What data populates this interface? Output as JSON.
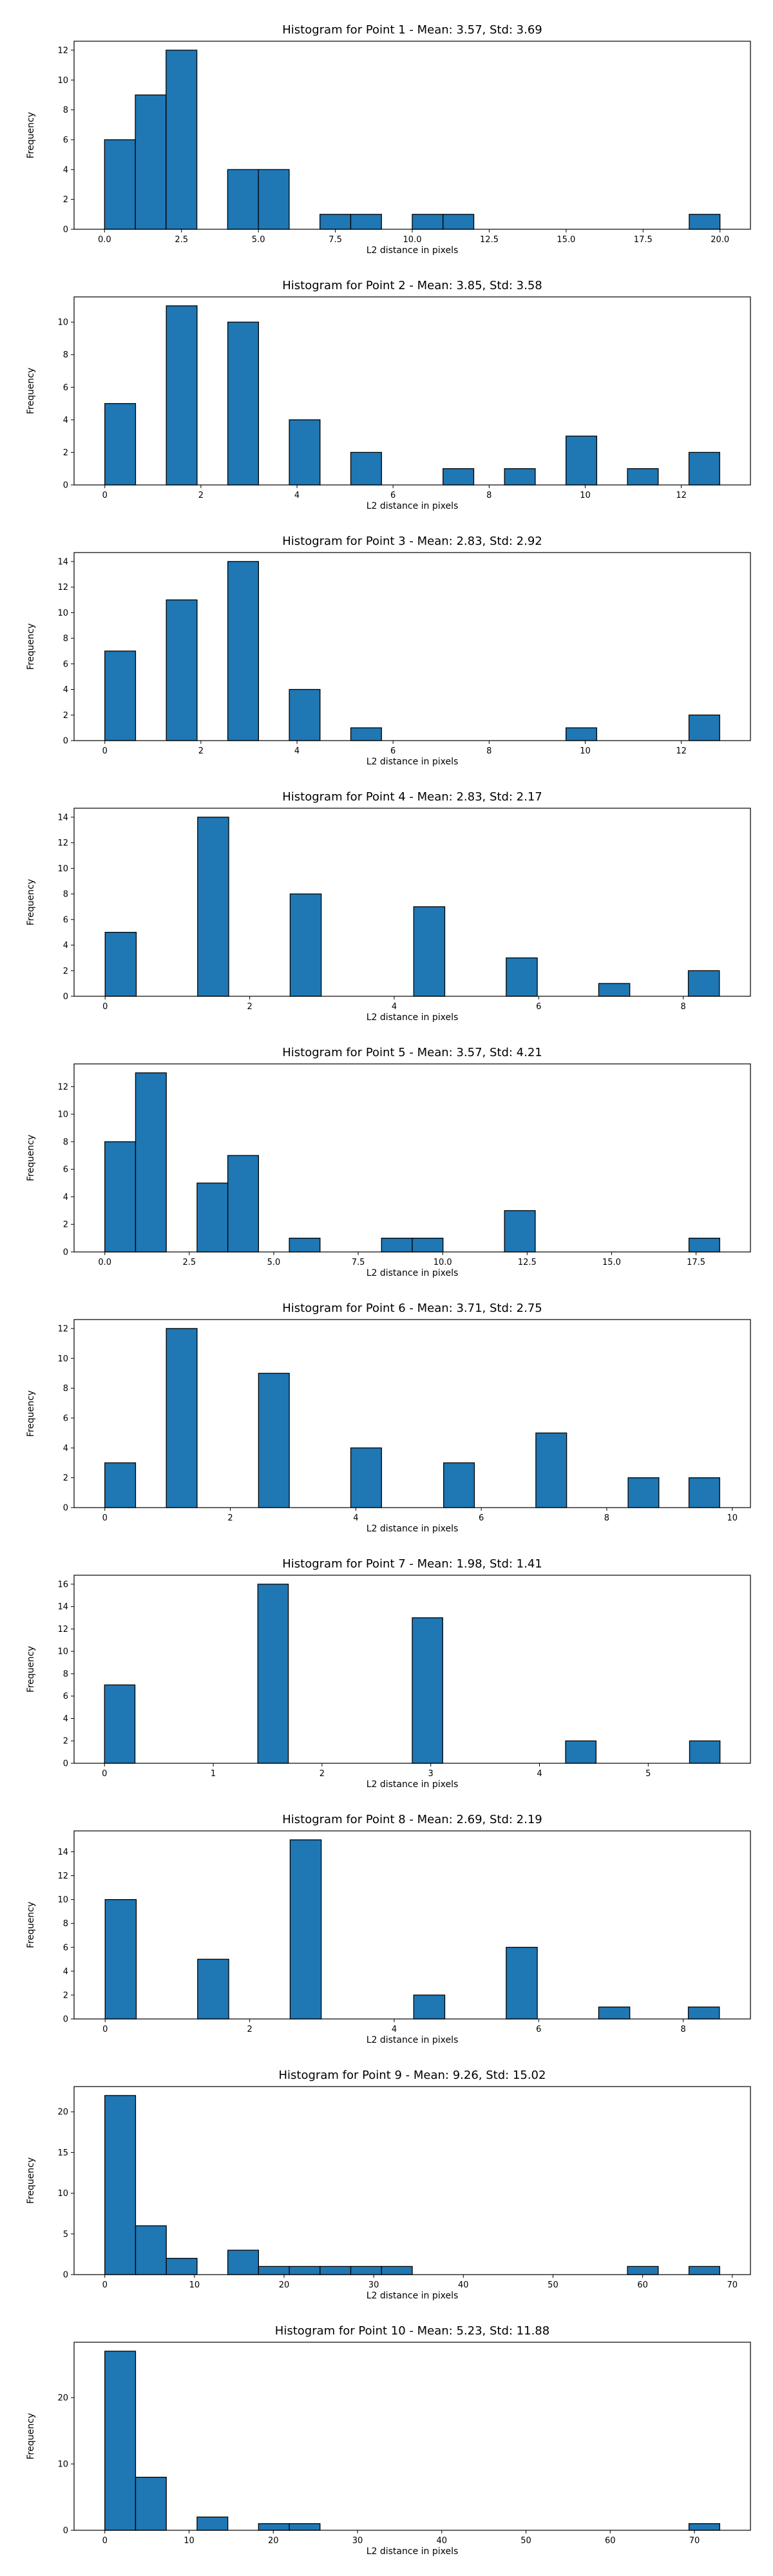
{
  "style": {
    "bar_color": "#1f77b4",
    "edge_color": "#000000",
    "background": "#ffffff"
  },
  "chart_data": [
    {
      "type": "bar",
      "title": "Histogram for Point 1 - Mean: 3.57, Std: 3.69",
      "xlabel": "L2 distance in pixels",
      "ylabel": "Frequency",
      "xlim": [
        -0.99,
        20.99
      ],
      "ylim": [
        0,
        12.6
      ],
      "xticks": [
        0,
        2.5,
        5,
        7.5,
        10,
        12.5,
        15,
        17.5,
        20
      ],
      "xtick_labels": [
        "0.0",
        "2.5",
        "5.0",
        "7.5",
        "10.0",
        "12.5",
        "15.0",
        "17.5",
        "20.0"
      ],
      "yticks": [
        0,
        2,
        4,
        6,
        8,
        10,
        12
      ],
      "bins": [
        [
          0.0,
          1.0
        ],
        [
          1.0,
          2.0
        ],
        [
          2.0,
          3.0
        ],
        [
          4.0,
          5.0
        ],
        [
          5.0,
          6.0
        ],
        [
          7.0,
          8.0
        ],
        [
          8.0,
          9.0
        ],
        [
          10.0,
          11.0
        ],
        [
          11.0,
          12.0
        ],
        [
          19.0,
          20.0
        ]
      ],
      "values": [
        6,
        9,
        12,
        4,
        4,
        1,
        1,
        1,
        1,
        1
      ]
    },
    {
      "type": "bar",
      "title": "Histogram for Point 2 - Mean: 3.85, Std: 3.58",
      "xlabel": "L2 distance in pixels",
      "ylabel": "Frequency",
      "xlim": [
        -0.64,
        13.44
      ],
      "ylim": [
        0,
        11.55
      ],
      "xticks": [
        0,
        2,
        4,
        6,
        8,
        10,
        12
      ],
      "xtick_labels": [
        "0",
        "2",
        "4",
        "6",
        "8",
        "10",
        "12"
      ],
      "yticks": [
        0,
        2,
        4,
        6,
        8,
        10
      ],
      "bins": [
        [
          0.0,
          0.64
        ],
        [
          1.28,
          1.92
        ],
        [
          2.56,
          3.2
        ],
        [
          3.84,
          4.48
        ],
        [
          5.12,
          5.76
        ],
        [
          7.04,
          7.68
        ],
        [
          8.32,
          8.96
        ],
        [
          9.6,
          10.24
        ],
        [
          10.88,
          11.52
        ],
        [
          12.16,
          12.8
        ]
      ],
      "values": [
        5,
        11,
        10,
        4,
        2,
        1,
        1,
        3,
        1,
        2
      ]
    },
    {
      "type": "bar",
      "title": "Histogram for Point 3 - Mean: 2.83, Std: 2.92",
      "xlabel": "L2 distance in pixels",
      "ylabel": "Frequency",
      "xlim": [
        -0.64,
        13.44
      ],
      "ylim": [
        0,
        14.7
      ],
      "xticks": [
        0,
        2,
        4,
        6,
        8,
        10,
        12
      ],
      "xtick_labels": [
        "0",
        "2",
        "4",
        "6",
        "8",
        "10",
        "12"
      ],
      "yticks": [
        0,
        2,
        4,
        6,
        8,
        10,
        12,
        14
      ],
      "bins": [
        [
          0.0,
          0.64
        ],
        [
          1.28,
          1.92
        ],
        [
          2.56,
          3.2
        ],
        [
          3.84,
          4.48
        ],
        [
          5.12,
          5.76
        ],
        [
          9.6,
          10.24
        ],
        [
          12.16,
          12.8
        ]
      ],
      "values": [
        7,
        11,
        14,
        4,
        1,
        1,
        2
      ]
    },
    {
      "type": "bar",
      "title": "Histogram for Point 4 - Mean: 2.83, Std: 2.17",
      "xlabel": "L2 distance in pixels",
      "ylabel": "Frequency",
      "xlim": [
        -0.43,
        8.93
      ],
      "ylim": [
        0,
        14.7
      ],
      "xticks": [
        0,
        2,
        4,
        6,
        8
      ],
      "xtick_labels": [
        "0",
        "2",
        "4",
        "6",
        "8"
      ],
      "yticks": [
        0,
        2,
        4,
        6,
        8,
        10,
        12,
        14
      ],
      "bins": [
        [
          0.0,
          0.43
        ],
        [
          1.28,
          1.71
        ],
        [
          2.56,
          2.99
        ],
        [
          4.27,
          4.7
        ],
        [
          5.55,
          5.98
        ],
        [
          6.83,
          7.26
        ],
        [
          8.07,
          8.5
        ]
      ],
      "values": [
        5,
        14,
        8,
        7,
        3,
        1,
        2
      ]
    },
    {
      "type": "bar",
      "title": "Histogram for Point 5 - Mean: 3.57, Std: 4.21",
      "xlabel": "L2 distance in pixels",
      "ylabel": "Frequency",
      "xlim": [
        -0.91,
        19.11
      ],
      "ylim": [
        0,
        13.65
      ],
      "xticks": [
        0,
        2.5,
        5,
        7.5,
        10,
        12.5,
        15,
        17.5
      ],
      "xtick_labels": [
        "0.0",
        "2.5",
        "5.0",
        "7.5",
        "10.0",
        "12.5",
        "15.0",
        "17.5"
      ],
      "yticks": [
        0,
        2,
        4,
        6,
        8,
        10,
        12
      ],
      "bins": [
        [
          0.0,
          0.91
        ],
        [
          0.91,
          1.82
        ],
        [
          2.73,
          3.64
        ],
        [
          3.64,
          4.55
        ],
        [
          5.46,
          6.37
        ],
        [
          8.19,
          9.1
        ],
        [
          9.1,
          10.01
        ],
        [
          11.83,
          12.74
        ],
        [
          17.29,
          18.2
        ]
      ],
      "values": [
        8,
        13,
        5,
        7,
        1,
        1,
        1,
        3,
        1
      ]
    },
    {
      "type": "bar",
      "title": "Histogram for Point 6 - Mean: 3.71, Std: 2.75",
      "xlabel": "L2 distance in pixels",
      "ylabel": "Frequency",
      "xlim": [
        -0.49,
        10.29
      ],
      "ylim": [
        0,
        12.6
      ],
      "xticks": [
        0,
        2,
        4,
        6,
        8,
        10
      ],
      "xtick_labels": [
        "0",
        "2",
        "4",
        "6",
        "8",
        "10"
      ],
      "yticks": [
        0,
        2,
        4,
        6,
        8,
        10,
        12
      ],
      "bins": [
        [
          0.0,
          0.49
        ],
        [
          0.98,
          1.47
        ],
        [
          2.45,
          2.94
        ],
        [
          3.92,
          4.41
        ],
        [
          5.4,
          5.89
        ],
        [
          6.87,
          7.36
        ],
        [
          8.34,
          8.83
        ],
        [
          9.31,
          9.8
        ]
      ],
      "values": [
        3,
        12,
        9,
        4,
        3,
        5,
        2,
        2
      ]
    },
    {
      "type": "bar",
      "title": "Histogram for Point 7 - Mean: 1.98, Std: 1.41",
      "xlabel": "L2 distance in pixels",
      "ylabel": "Frequency",
      "xlim": [
        -0.28,
        5.94
      ],
      "ylim": [
        0,
        16.8
      ],
      "xticks": [
        0,
        1,
        2,
        3,
        4,
        5
      ],
      "xtick_labels": [
        "0",
        "1",
        "2",
        "3",
        "4",
        "5"
      ],
      "yticks": [
        0,
        2,
        4,
        6,
        8,
        10,
        12,
        14,
        16
      ],
      "bins": [
        [
          0.0,
          0.28
        ],
        [
          1.41,
          1.69
        ],
        [
          2.83,
          3.11
        ],
        [
          4.24,
          4.52
        ],
        [
          5.38,
          5.66
        ]
      ],
      "values": [
        7,
        16,
        13,
        2,
        2
      ]
    },
    {
      "type": "bar",
      "title": "Histogram for Point 8 - Mean: 2.69, Std: 2.19",
      "xlabel": "L2 distance in pixels",
      "ylabel": "Frequency",
      "xlim": [
        -0.43,
        8.93
      ],
      "ylim": [
        0,
        15.75
      ],
      "xticks": [
        0,
        2,
        4,
        6,
        8
      ],
      "xtick_labels": [
        "0",
        "2",
        "4",
        "6",
        "8"
      ],
      "yticks": [
        0,
        2,
        4,
        6,
        8,
        10,
        12,
        14
      ],
      "bins": [
        [
          0.0,
          0.43
        ],
        [
          1.28,
          1.71
        ],
        [
          2.56,
          2.99
        ],
        [
          4.27,
          4.7
        ],
        [
          5.55,
          5.98
        ],
        [
          6.83,
          7.26
        ],
        [
          8.07,
          8.5
        ]
      ],
      "values": [
        10,
        5,
        15,
        2,
        6,
        1,
        1
      ]
    },
    {
      "type": "bar",
      "title": "Histogram for Point 9 - Mean: 9.26, Std: 15.02",
      "xlabel": "L2 distance in pixels",
      "ylabel": "Frequency",
      "xlim": [
        -3.43,
        72.03
      ],
      "ylim": [
        0,
        23.1
      ],
      "xticks": [
        0,
        10,
        20,
        30,
        40,
        50,
        60,
        70
      ],
      "xtick_labels": [
        "0",
        "10",
        "20",
        "30",
        "40",
        "50",
        "60",
        "70"
      ],
      "yticks": [
        0,
        5,
        10,
        15,
        20
      ],
      "bins": [
        [
          0.0,
          3.43
        ],
        [
          3.43,
          6.86
        ],
        [
          6.86,
          10.29
        ],
        [
          13.72,
          17.15
        ],
        [
          17.15,
          20.58
        ],
        [
          20.58,
          24.01
        ],
        [
          24.01,
          27.44
        ],
        [
          27.44,
          30.87
        ],
        [
          30.87,
          34.3
        ],
        [
          58.31,
          61.74
        ],
        [
          65.17,
          68.6
        ]
      ],
      "values": [
        22,
        6,
        2,
        3,
        1,
        1,
        1,
        1,
        1,
        1,
        1
      ]
    },
    {
      "type": "bar",
      "title": "Histogram for Point 10 - Mean: 5.23, Std: 11.88",
      "xlabel": "L2 distance in pixels",
      "ylabel": "Frequency",
      "xlim": [
        -3.65,
        76.65
      ],
      "ylim": [
        0,
        28.35
      ],
      "xticks": [
        0,
        10,
        20,
        30,
        40,
        50,
        60,
        70
      ],
      "xtick_labels": [
        "0",
        "10",
        "20",
        "30",
        "40",
        "50",
        "60",
        "70"
      ],
      "yticks": [
        0,
        10,
        20
      ],
      "bins": [
        [
          0.0,
          3.65
        ],
        [
          3.65,
          7.3
        ],
        [
          10.95,
          14.6
        ],
        [
          18.25,
          21.9
        ],
        [
          21.9,
          25.55
        ],
        [
          69.35,
          73.0
        ]
      ],
      "values": [
        27,
        8,
        2,
        1,
        1,
        1
      ]
    }
  ]
}
